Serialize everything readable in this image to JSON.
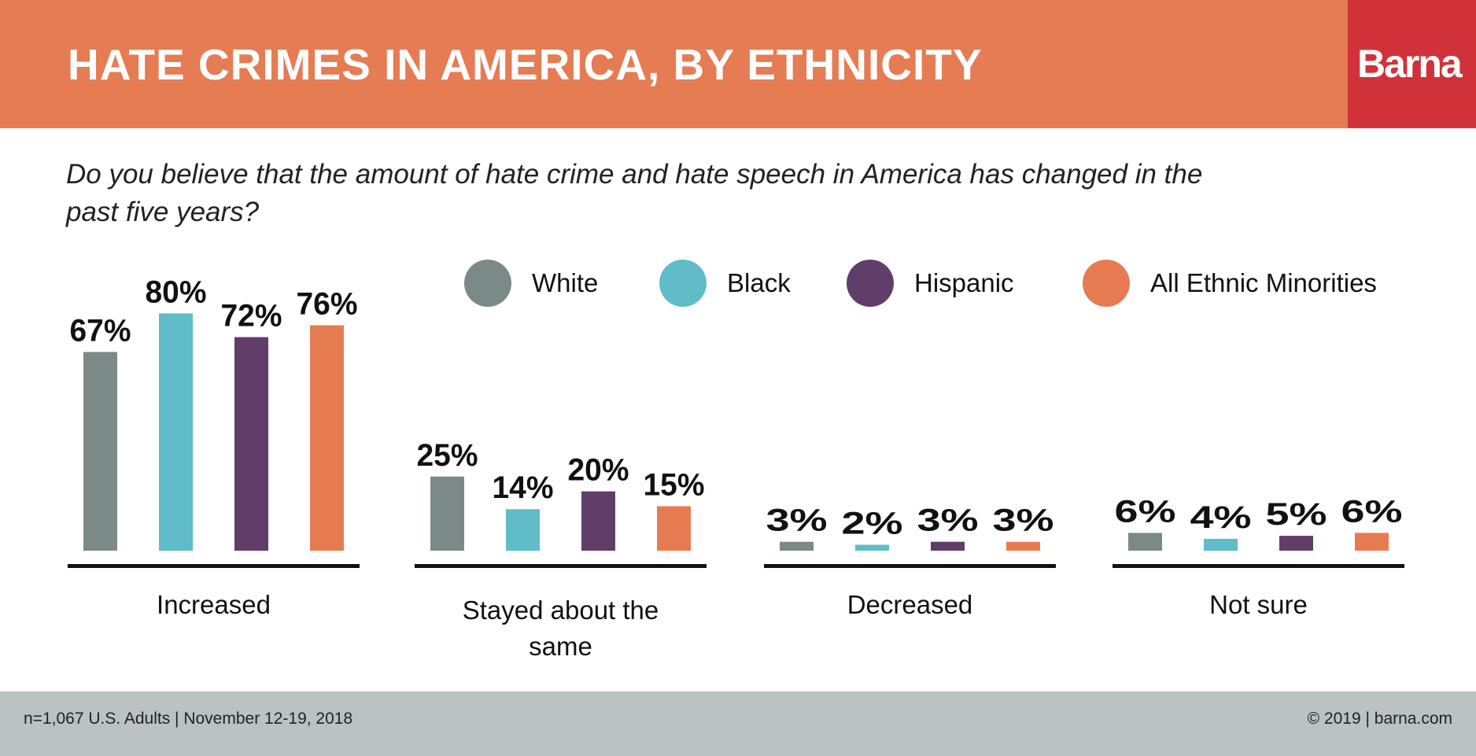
{
  "header": {
    "title": "HATE CRIMES IN AMERICA, BY ETHNICITY",
    "logo_text": "Barna"
  },
  "question": "Do you believe that the amount of hate crime and hate speech in America has changed in the past five years?",
  "footer": {
    "left": "n=1,067 U.S. Adults | November 12-19, 2018",
    "right": "© 2019 | barna.com"
  },
  "chart_data": {
    "type": "bar",
    "title": "",
    "categories": [
      "Increased",
      "Stayed about the same",
      "Decreased",
      "Not sure"
    ],
    "series": [
      {
        "name": "White",
        "color": "#7b8a87",
        "values": [
          67,
          25,
          3,
          6
        ]
      },
      {
        "name": "Black",
        "color": "#5fbcc8",
        "values": [
          80,
          14,
          2,
          4
        ]
      },
      {
        "name": "Hispanic",
        "color": "#613d69",
        "values": [
          72,
          20,
          3,
          5
        ]
      },
      {
        "name": "All Ethnic Minorities",
        "color": "#e67b52",
        "values": [
          76,
          15,
          3,
          6
        ]
      }
    ],
    "value_suffix": "%",
    "ylim": [
      0,
      100
    ],
    "grid": false,
    "legend_position": "top"
  }
}
